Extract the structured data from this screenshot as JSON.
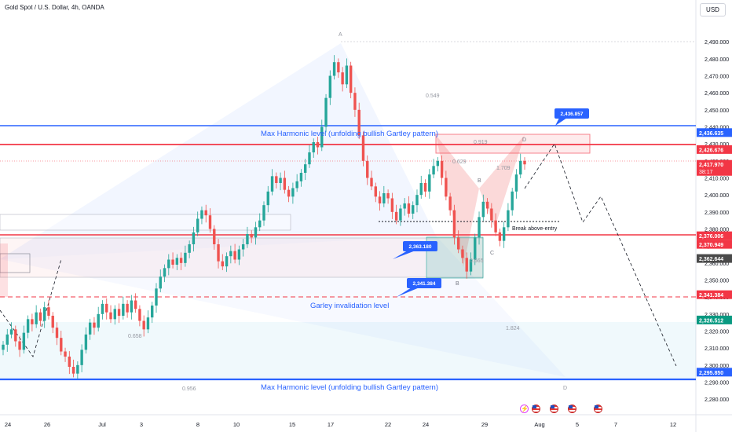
{
  "header": {
    "symbol_title": "Gold Spot / U.S. Dollar, 4h, OANDA",
    "currency_button": "USD"
  },
  "colors": {
    "bull": "#26a69a",
    "bear": "#ef5350",
    "blue_line": "#2962ff",
    "red_line": "#f23645",
    "gray_label": "#787b86"
  },
  "events": [
    "flash-icon",
    "us-flag-icon",
    "us-flag-icon",
    "us-flag-icon",
    "us-flag-icon"
  ],
  "chart_data": {
    "type": "candlestick",
    "title": "Gold Spot / U.S. Dollar, 4h, OANDA",
    "ylim": [
      2275,
      2497
    ],
    "y_ticks": [
      "2,490.000",
      "2,480.000",
      "2,470.000",
      "2,460.000",
      "2,450.000",
      "2,440.000",
      "2,430.000",
      "2,420.000",
      "2,410.000",
      "2,400.000",
      "2,390.000",
      "2,380.000",
      "2,370.000",
      "2,360.000",
      "2,350.000",
      "2,340.000",
      "2,330.000",
      "2,320.000",
      "2,310.000",
      "2,300.000",
      "2,290.000",
      "2,280.000"
    ],
    "x_labels": [
      "24",
      "26",
      "Jul",
      "3",
      "8",
      "10",
      "15",
      "17",
      "22",
      "24",
      "29",
      "Aug",
      "5",
      "7",
      "12"
    ],
    "n_slots": 143,
    "last_candle_slot": 103,
    "candles_close": [
      2312,
      2318,
      2321,
      2314,
      2309,
      2319,
      2327,
      2324,
      2331,
      2326,
      2334,
      2329,
      2322,
      2316,
      2308,
      2305,
      2299,
      2295,
      2300,
      2309,
      2318,
      2325,
      2322,
      2330,
      2336,
      2331,
      2327,
      2333,
      2329,
      2336,
      2331,
      2338,
      2333,
      2326,
      2321,
      2328,
      2335,
      2345,
      2352,
      2357,
      2362,
      2359,
      2363,
      2360,
      2366,
      2371,
      2378,
      2386,
      2391,
      2388,
      2380,
      2371,
      2361,
      2358,
      2364,
      2367,
      2362,
      2368,
      2371,
      2377,
      2375,
      2381,
      2385,
      2394,
      2402,
      2411,
      2407,
      2410,
      2403,
      2399,
      2404,
      2408,
      2413,
      2418,
      2425,
      2431,
      2428,
      2440,
      2457,
      2470,
      2478,
      2472,
      2465,
      2476,
      2460,
      2450,
      2435,
      2420,
      2410,
      2405,
      2399,
      2395,
      2401,
      2398,
      2390,
      2385,
      2392,
      2395,
      2389,
      2394,
      2400,
      2407,
      2402,
      2412,
      2417,
      2420,
      2410,
      2399,
      2391,
      2375,
      2368,
      2363,
      2355,
      2362,
      2375,
      2387,
      2396,
      2392,
      2385,
      2378,
      2373,
      2381,
      2391,
      2402,
      2412,
      2420,
      2417.97
    ],
    "price_levels": [
      {
        "value": 2436.635,
        "label": "2,436.635",
        "color": "#2962ff"
      },
      {
        "value": 2426.676,
        "label": "2,426.676",
        "color": "#f23645"
      },
      {
        "value": 2417.97,
        "label": "2,417.970",
        "sublabel": "38:17",
        "color": "#f23645"
      },
      {
        "value": 2376.006,
        "label": "2,376.006",
        "color": "#f23645"
      },
      {
        "value": 2370.949,
        "label": "2,370.949",
        "color": "#f23645"
      },
      {
        "value": 2362.644,
        "label": "2,362.644",
        "color": "#4a4a4a"
      },
      {
        "value": 2341.384,
        "label": "2,341.384",
        "color": "#f23645"
      },
      {
        "value": 2326.512,
        "label": "2,326.512",
        "color": "#089981"
      },
      {
        "value": 2295.85,
        "label": "2,295.850",
        "color": "#2962ff"
      }
    ],
    "callouts": [
      {
        "label": "2,436.857",
        "price": 2436.857,
        "slot": 115
      },
      {
        "label": "2,363.180",
        "price": 2363.18,
        "slot": 86
      },
      {
        "label": "2,341.384",
        "price": 2341.384,
        "slot": 87
      }
    ],
    "annotations": {
      "max_harmonic_top": "Max Harmonic level (unfolding bullish Gartley pattern)",
      "max_harmonic_bottom": "Max Harmonic level (unfolding bullish Gartley pattern)",
      "invalidation": "Garley invalidation level",
      "break_entry": "Break above-entry",
      "fib_0549": "0.549",
      "fib_0919": "0.919",
      "fib_0629": "0.629",
      "fib_1709": "1.709",
      "fib_0658": "0.658",
      "fib_0956": "0.956",
      "fib_1824": "1.824",
      "fib_0665": "0.665",
      "pt_A": "A",
      "pt_B": "B",
      "pt_C": "C",
      "pt_D": "D",
      "pt_D2": "D",
      "pt_B2": "B"
    }
  }
}
